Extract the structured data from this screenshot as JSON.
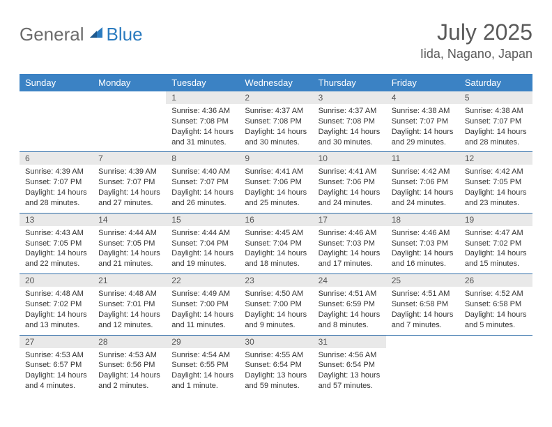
{
  "brand": {
    "general": "General",
    "blue": "Blue"
  },
  "title": "July 2025",
  "location": "Iida, Nagano, Japan",
  "colors": {
    "header_bg": "#3b82c4",
    "header_text": "#ffffff",
    "daynum_bg": "#e9e9e9",
    "cell_border": "#2f6da8",
    "logo_gray": "#6b6b6b",
    "logo_blue": "#2b7bbf"
  },
  "day_headers": [
    "Sunday",
    "Monday",
    "Tuesday",
    "Wednesday",
    "Thursday",
    "Friday",
    "Saturday"
  ],
  "weeks": [
    [
      null,
      null,
      {
        "n": "1",
        "sr": "4:36 AM",
        "ss": "7:08 PM",
        "dl": "14 hours and 31 minutes."
      },
      {
        "n": "2",
        "sr": "4:37 AM",
        "ss": "7:08 PM",
        "dl": "14 hours and 30 minutes."
      },
      {
        "n": "3",
        "sr": "4:37 AM",
        "ss": "7:08 PM",
        "dl": "14 hours and 30 minutes."
      },
      {
        "n": "4",
        "sr": "4:38 AM",
        "ss": "7:07 PM",
        "dl": "14 hours and 29 minutes."
      },
      {
        "n": "5",
        "sr": "4:38 AM",
        "ss": "7:07 PM",
        "dl": "14 hours and 28 minutes."
      }
    ],
    [
      {
        "n": "6",
        "sr": "4:39 AM",
        "ss": "7:07 PM",
        "dl": "14 hours and 28 minutes."
      },
      {
        "n": "7",
        "sr": "4:39 AM",
        "ss": "7:07 PM",
        "dl": "14 hours and 27 minutes."
      },
      {
        "n": "8",
        "sr": "4:40 AM",
        "ss": "7:07 PM",
        "dl": "14 hours and 26 minutes."
      },
      {
        "n": "9",
        "sr": "4:41 AM",
        "ss": "7:06 PM",
        "dl": "14 hours and 25 minutes."
      },
      {
        "n": "10",
        "sr": "4:41 AM",
        "ss": "7:06 PM",
        "dl": "14 hours and 24 minutes."
      },
      {
        "n": "11",
        "sr": "4:42 AM",
        "ss": "7:06 PM",
        "dl": "14 hours and 24 minutes."
      },
      {
        "n": "12",
        "sr": "4:42 AM",
        "ss": "7:05 PM",
        "dl": "14 hours and 23 minutes."
      }
    ],
    [
      {
        "n": "13",
        "sr": "4:43 AM",
        "ss": "7:05 PM",
        "dl": "14 hours and 22 minutes."
      },
      {
        "n": "14",
        "sr": "4:44 AM",
        "ss": "7:05 PM",
        "dl": "14 hours and 21 minutes."
      },
      {
        "n": "15",
        "sr": "4:44 AM",
        "ss": "7:04 PM",
        "dl": "14 hours and 19 minutes."
      },
      {
        "n": "16",
        "sr": "4:45 AM",
        "ss": "7:04 PM",
        "dl": "14 hours and 18 minutes."
      },
      {
        "n": "17",
        "sr": "4:46 AM",
        "ss": "7:03 PM",
        "dl": "14 hours and 17 minutes."
      },
      {
        "n": "18",
        "sr": "4:46 AM",
        "ss": "7:03 PM",
        "dl": "14 hours and 16 minutes."
      },
      {
        "n": "19",
        "sr": "4:47 AM",
        "ss": "7:02 PM",
        "dl": "14 hours and 15 minutes."
      }
    ],
    [
      {
        "n": "20",
        "sr": "4:48 AM",
        "ss": "7:02 PM",
        "dl": "14 hours and 13 minutes."
      },
      {
        "n": "21",
        "sr": "4:48 AM",
        "ss": "7:01 PM",
        "dl": "14 hours and 12 minutes."
      },
      {
        "n": "22",
        "sr": "4:49 AM",
        "ss": "7:00 PM",
        "dl": "14 hours and 11 minutes."
      },
      {
        "n": "23",
        "sr": "4:50 AM",
        "ss": "7:00 PM",
        "dl": "14 hours and 9 minutes."
      },
      {
        "n": "24",
        "sr": "4:51 AM",
        "ss": "6:59 PM",
        "dl": "14 hours and 8 minutes."
      },
      {
        "n": "25",
        "sr": "4:51 AM",
        "ss": "6:58 PM",
        "dl": "14 hours and 7 minutes."
      },
      {
        "n": "26",
        "sr": "4:52 AM",
        "ss": "6:58 PM",
        "dl": "14 hours and 5 minutes."
      }
    ],
    [
      {
        "n": "27",
        "sr": "4:53 AM",
        "ss": "6:57 PM",
        "dl": "14 hours and 4 minutes."
      },
      {
        "n": "28",
        "sr": "4:53 AM",
        "ss": "6:56 PM",
        "dl": "14 hours and 2 minutes."
      },
      {
        "n": "29",
        "sr": "4:54 AM",
        "ss": "6:55 PM",
        "dl": "14 hours and 1 minute."
      },
      {
        "n": "30",
        "sr": "4:55 AM",
        "ss": "6:54 PM",
        "dl": "13 hours and 59 minutes."
      },
      {
        "n": "31",
        "sr": "4:56 AM",
        "ss": "6:54 PM",
        "dl": "13 hours and 57 minutes."
      },
      null,
      null
    ]
  ],
  "labels": {
    "sunrise": "Sunrise:",
    "sunset": "Sunset:",
    "daylight": "Daylight:"
  }
}
